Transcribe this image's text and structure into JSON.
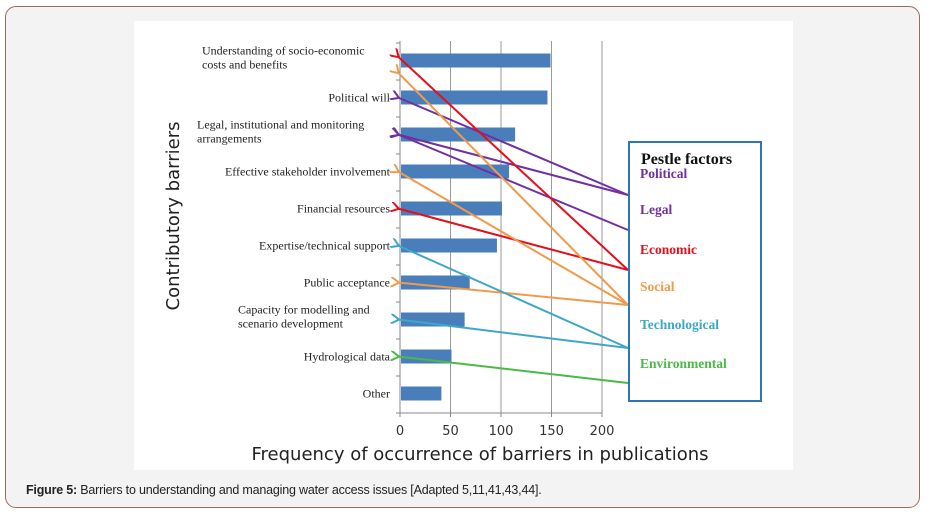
{
  "caption": {
    "label": "Figure 5:",
    "text": " Barriers to understanding and managing water access issues [Adapted 5,11,41,43,44]."
  },
  "chart_data": {
    "type": "bar",
    "orientation": "horizontal",
    "title": "",
    "xlabel": "Frequency of occurrence of barriers in publications",
    "ylabel": "Contributory barriers",
    "xlim": [
      0,
      225
    ],
    "xticks": [
      0,
      50,
      100,
      150,
      200
    ],
    "grid": true,
    "bar_color": "#4a7ebb",
    "categories": [
      [
        "Understanding of socio-economic",
        "costs and benefits"
      ],
      [
        "Political will"
      ],
      [
        "Legal, institutional and monitoring",
        "arrangements"
      ],
      [
        "Effective stakeholder involvement"
      ],
      [
        "Financial resources"
      ],
      [
        "Expertise/technical support"
      ],
      [
        "Public acceptance"
      ],
      [
        "Capacity for modelling and",
        "scenario development"
      ],
      [
        "Hydrological data"
      ],
      [
        "Other"
      ]
    ],
    "values": [
      148,
      145,
      113,
      107,
      100,
      95,
      68,
      63,
      50,
      40
    ],
    "legend": {
      "title": "Pestle factors",
      "position": "right",
      "factors": [
        {
          "name": "Political",
          "color": "#7030a0",
          "targets": [
            1,
            2
          ]
        },
        {
          "name": "Legal",
          "color": "#7030a0",
          "targets": [
            2
          ]
        },
        {
          "name": "Economic",
          "color": "#e3101c",
          "targets": [
            0,
            4
          ]
        },
        {
          "name": "Social",
          "color": "#f09a4c",
          "targets": [
            0,
            3,
            6
          ]
        },
        {
          "name": "Technological",
          "color": "#3fa6c8",
          "targets": [
            5,
            7
          ]
        },
        {
          "name": "Environmental",
          "color": "#4cb848",
          "targets": [
            8
          ]
        }
      ]
    }
  }
}
